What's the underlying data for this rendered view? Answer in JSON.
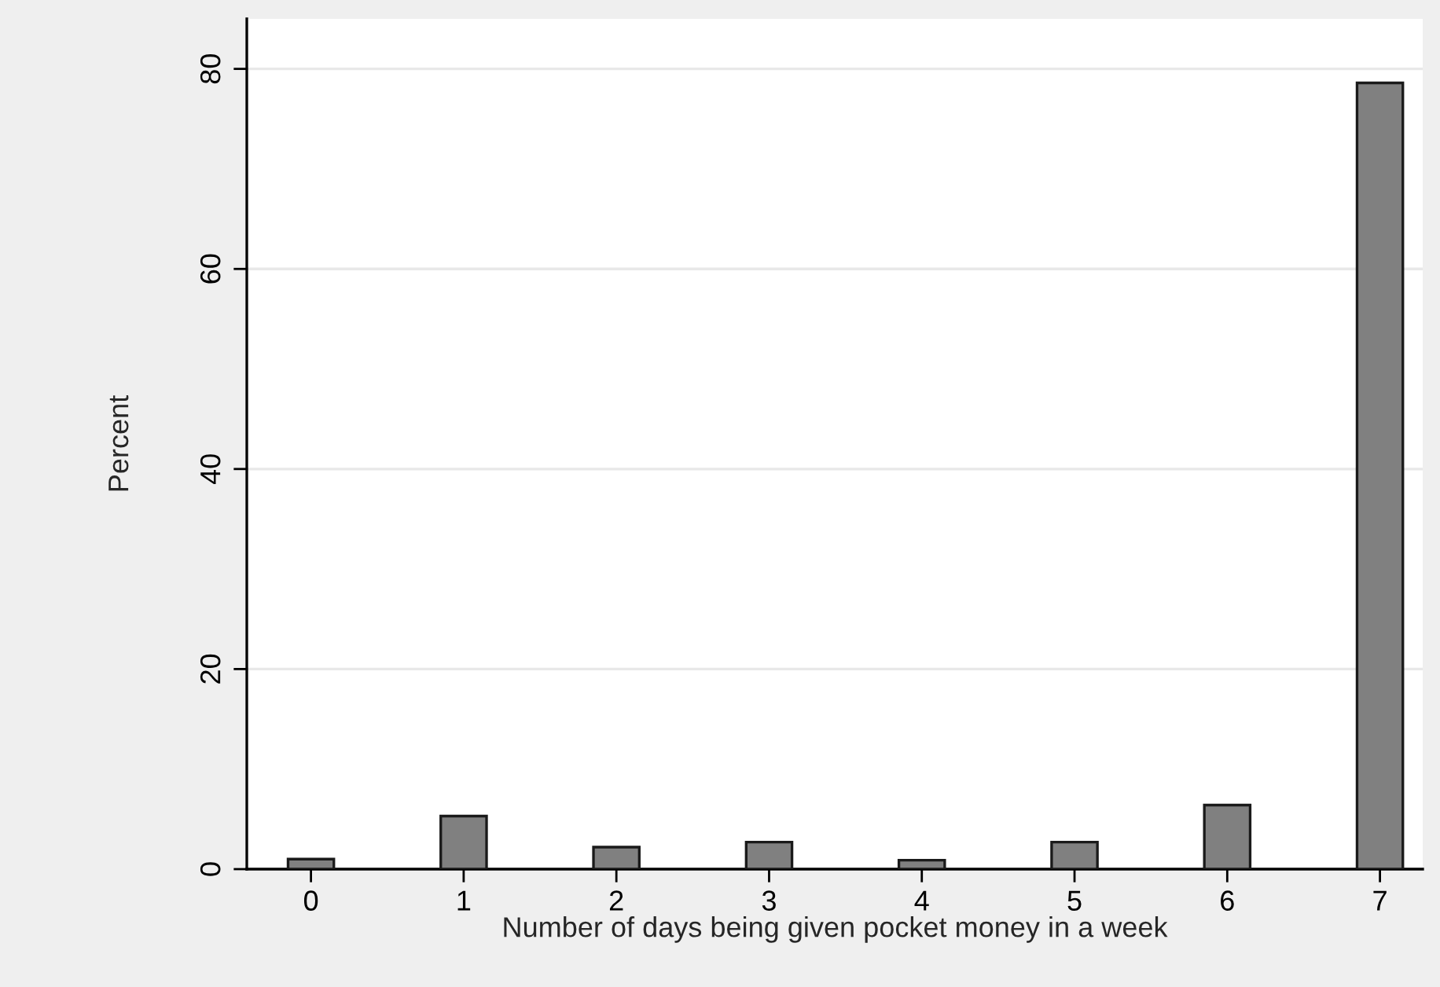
{
  "chart_data": {
    "type": "bar",
    "xlabel": "Number of days being given pocket money in a week",
    "ylabel": "Percent",
    "x": [
      0,
      1,
      2,
      3,
      4,
      5,
      6,
      7
    ],
    "values": [
      1.0,
      5.3,
      2.2,
      2.7,
      0.9,
      2.7,
      6.4,
      78.6
    ],
    "color": "#808080",
    "xlim": [
      -0.42,
      7.28
    ],
    "xticks": [
      0,
      1,
      2,
      3,
      4,
      5,
      6,
      7
    ],
    "ylim": [
      0,
      85
    ],
    "yticks": [
      0,
      20,
      40,
      60,
      80
    ],
    "grid": "y",
    "legend": false
  }
}
